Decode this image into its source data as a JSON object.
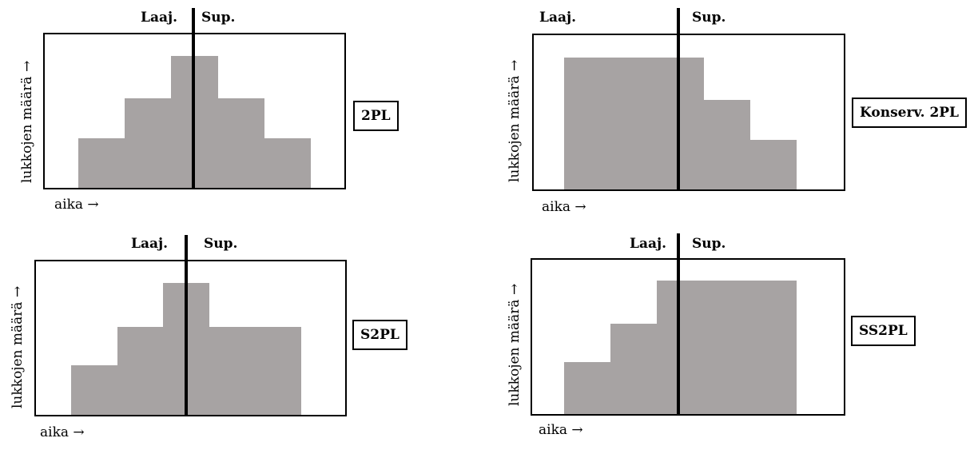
{
  "panels": [
    {
      "protocol": "2PL",
      "growing_label": "Laaj.",
      "shrinking_label": "Sup.",
      "y_label": "lukkojen määrä →",
      "x_label": "aika →",
      "lock_levels": [
        1,
        2,
        3,
        2,
        1
      ]
    },
    {
      "protocol": "Konserv. 2PL",
      "growing_label": "Laaj.",
      "shrinking_label": "Sup.",
      "y_label": "lukkojen määrä →",
      "x_label": "aika →",
      "lock_levels": [
        3,
        3,
        3,
        2,
        1
      ]
    },
    {
      "protocol": "S2PL",
      "growing_label": "Laaj.",
      "shrinking_label": "Sup.",
      "y_label": "lukkojen määrä →",
      "x_label": "aika →",
      "lock_levels": [
        1,
        2,
        3,
        2,
        2
      ]
    },
    {
      "protocol": "SS2PL",
      "growing_label": "Laaj.",
      "shrinking_label": "Sup.",
      "y_label": "lukkojen määrä →",
      "x_label": "aika →",
      "lock_levels": [
        1,
        2,
        3,
        3,
        3
      ]
    }
  ],
  "colors": {
    "fill": "#a7a3a3",
    "line": "#000000"
  }
}
